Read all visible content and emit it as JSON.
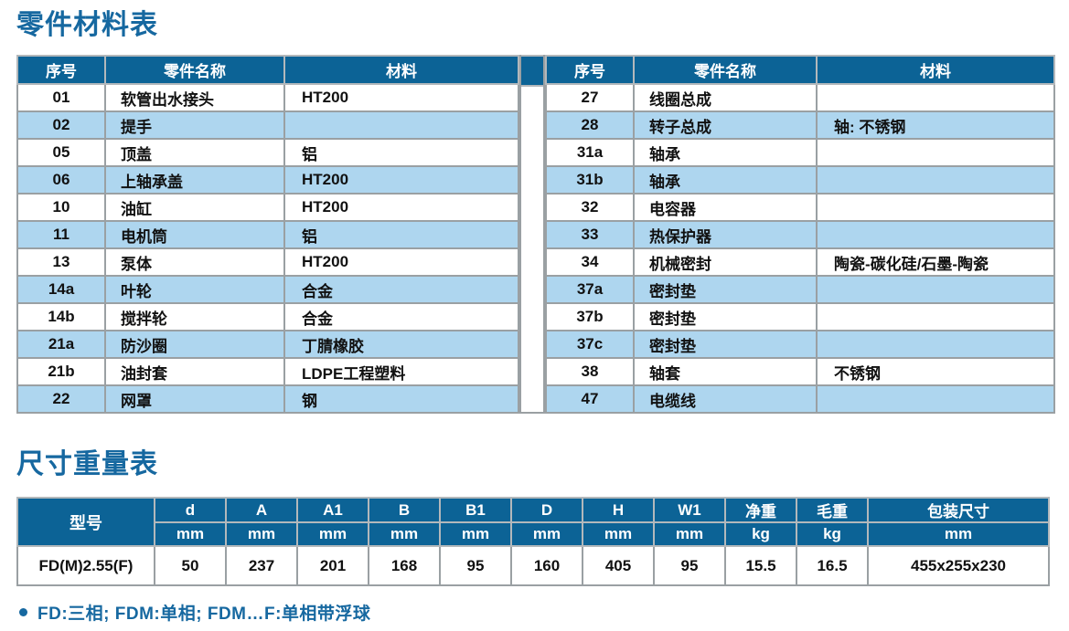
{
  "parts_section": {
    "title": "零件材料表",
    "columns": {
      "no": "序号",
      "name": "零件名称",
      "material": "材料"
    },
    "left_rows": [
      {
        "no": "01",
        "name": "软管出水接头",
        "material": "HT200"
      },
      {
        "no": "02",
        "name": "提手",
        "material": ""
      },
      {
        "no": "05",
        "name": "顶盖",
        "material": "铝"
      },
      {
        "no": "06",
        "name": "上轴承盖",
        "material": "HT200"
      },
      {
        "no": "10",
        "name": "油缸",
        "material": "HT200"
      },
      {
        "no": "11",
        "name": "电机筒",
        "material": "铝"
      },
      {
        "no": "13",
        "name": "泵体",
        "material": "HT200"
      },
      {
        "no": "14a",
        "name": "叶轮",
        "material": "合金"
      },
      {
        "no": "14b",
        "name": "搅拌轮",
        "material": "合金"
      },
      {
        "no": "21a",
        "name": "防沙圈",
        "material": "丁腈橡胶"
      },
      {
        "no": "21b",
        "name": "油封套",
        "material": "LDPE工程塑料"
      },
      {
        "no": "22",
        "name": "网罩",
        "material": "钢"
      }
    ],
    "right_rows": [
      {
        "no": "27",
        "name": "线圈总成",
        "material": ""
      },
      {
        "no": "28",
        "name": "转子总成",
        "material": "轴: 不锈钢"
      },
      {
        "no": "31a",
        "name": "轴承",
        "material": ""
      },
      {
        "no": "31b",
        "name": "轴承",
        "material": ""
      },
      {
        "no": "32",
        "name": "电容器",
        "material": ""
      },
      {
        "no": "33",
        "name": "热保护器",
        "material": ""
      },
      {
        "no": "34",
        "name": "机械密封",
        "material": "陶瓷-碳化硅/石墨-陶瓷"
      },
      {
        "no": "37a",
        "name": "密封垫",
        "material": ""
      },
      {
        "no": "37b",
        "name": "密封垫",
        "material": ""
      },
      {
        "no": "37c",
        "name": "密封垫",
        "material": ""
      },
      {
        "no": "38",
        "name": "轴套",
        "material": "不锈钢"
      },
      {
        "no": "47",
        "name": "电缆线",
        "material": ""
      }
    ]
  },
  "dims_section": {
    "title": "尺寸重量表",
    "model_header": "型号",
    "columns": [
      {
        "label": "d",
        "unit": "mm"
      },
      {
        "label": "A",
        "unit": "mm"
      },
      {
        "label": "A1",
        "unit": "mm"
      },
      {
        "label": "B",
        "unit": "mm"
      },
      {
        "label": "B1",
        "unit": "mm"
      },
      {
        "label": "D",
        "unit": "mm"
      },
      {
        "label": "H",
        "unit": "mm"
      },
      {
        "label": "W1",
        "unit": "mm"
      },
      {
        "label": "净重",
        "unit": "kg"
      },
      {
        "label": "毛重",
        "unit": "kg"
      },
      {
        "label": "包装尺寸",
        "unit": "mm"
      }
    ],
    "row": {
      "model": "FD(M)2.55(F)",
      "values": [
        "50",
        "237",
        "201",
        "168",
        "95",
        "160",
        "405",
        "95",
        "15.5",
        "16.5",
        "455x255x230"
      ]
    }
  },
  "footnote": {
    "text": "FD:三相; FDM:单相; FDM…F:单相带浮球"
  },
  "colors": {
    "header_blue": "#0c6396",
    "row_blue": "#aed6ef",
    "title_blue": "#1668a0"
  }
}
